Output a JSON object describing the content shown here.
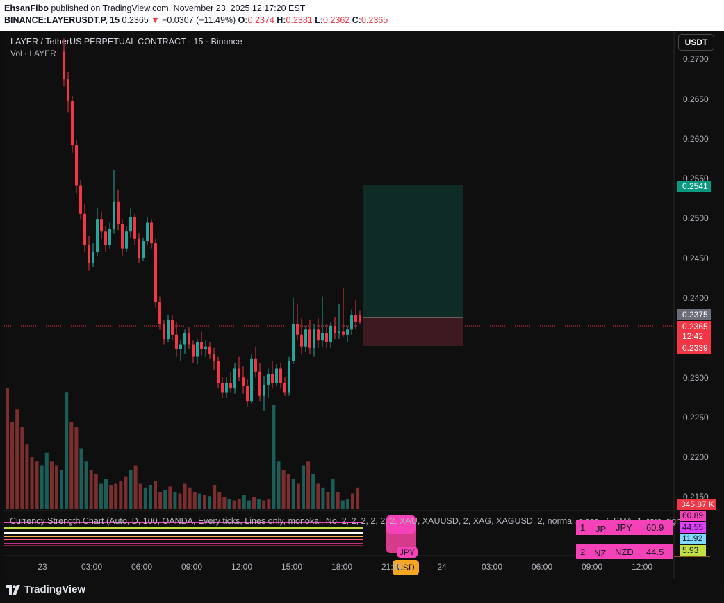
{
  "header": {
    "author": "EhsanFibo",
    "published_text": "published on TradingView.com, November 23, 2025 12:17:20 EST",
    "symbol": "BINANCE:LAYERUSDT.P, 15",
    "last": "0.2365",
    "change_arrow": "▼",
    "change": "−0.0307 (−11.49%)",
    "o_label": "O:",
    "o": "0.2374",
    "h_label": "H:",
    "h": "0.2381",
    "l_label": "L:",
    "l": "0.2362",
    "c_label": "C:",
    "c": "0.2365"
  },
  "legend": {
    "title": "LAYER / TetherUS PERPETUAL CONTRACT · 15 · Binance",
    "volume": "Vol · LAYER"
  },
  "currency_button": "USDT",
  "price_axis": {
    "ticks": [
      "0.2700",
      "0.2650",
      "0.2600",
      "0.2550",
      "0.2500",
      "0.2450",
      "0.2400",
      "0.2300",
      "0.2250",
      "0.2200",
      "0.2150"
    ],
    "labels": {
      "target": "0.2541",
      "entry": "0.2375",
      "last": "0.2365",
      "countdown": "12:42",
      "stop": "0.2339",
      "volume": "345.87 K"
    }
  },
  "time_axis": [
    "23",
    "03:00",
    "06:00",
    "09:00",
    "12:00",
    "15:00",
    "18:00",
    "21:00",
    "24",
    "03:00",
    "06:00",
    "09:00",
    "12:00"
  ],
  "indicator": {
    "text": "Currency Strength Chart (Auto, D, 100, OANDA, Every ticks, Lines only, monokai, No, 2, 2, 2, 2, 2, 2, XAU, XAUUSD, 2, XAG, XAGUSD, 2, normal, close, 7, SMA, 1, true, right",
    "jpy_label": "JPY",
    "usd_label": "USD",
    "table": [
      {
        "rank": "1",
        "flag": "JP",
        "currency": "JPY",
        "value": "60.9"
      },
      {
        "rank": "2",
        "flag": "NZ",
        "currency": "NZD",
        "value": "44.5"
      }
    ],
    "side_labels": [
      "60.89",
      "44.55",
      "11.92",
      "5.93"
    ]
  },
  "colors": {
    "up": "#26a69a",
    "down": "#f23645",
    "up_vol": "#1b5e58",
    "down_vol": "#7a2e2e",
    "target_zone": "#0f2b26",
    "stop_zone": "#3d1a1f"
  },
  "footer": {
    "logo_text": "TradingView"
  },
  "chart_data": {
    "type": "candlestick",
    "title": "LAYER / TetherUS PERPETUAL CONTRACT · 15 · Binance",
    "ylim": [
      0.213,
      0.2722
    ],
    "candles": [
      [
        0.2732,
        0.275,
        0.2685,
        0.2695
      ],
      [
        0.2695,
        0.2705,
        0.265,
        0.2665
      ],
      [
        0.2665,
        0.2672,
        0.2595,
        0.2605
      ],
      [
        0.2605,
        0.2612,
        0.254,
        0.255
      ],
      [
        0.255,
        0.2558,
        0.2505,
        0.2512
      ],
      [
        0.2512,
        0.2525,
        0.246,
        0.247
      ],
      [
        0.247,
        0.2482,
        0.2435,
        0.2445
      ],
      [
        0.2445,
        0.2472,
        0.244,
        0.246
      ],
      [
        0.246,
        0.252,
        0.2455,
        0.2505
      ],
      [
        0.2505,
        0.2515,
        0.2478,
        0.2488
      ],
      [
        0.2488,
        0.2495,
        0.246,
        0.247
      ],
      [
        0.247,
        0.25,
        0.2465,
        0.2492
      ],
      [
        0.2492,
        0.2572,
        0.2485,
        0.2528
      ],
      [
        0.2528,
        0.2545,
        0.249,
        0.2498
      ],
      [
        0.2498,
        0.2505,
        0.2455,
        0.2465
      ],
      [
        0.2465,
        0.2495,
        0.246,
        0.2488
      ],
      [
        0.2488,
        0.252,
        0.248,
        0.2508
      ],
      [
        0.2508,
        0.2512,
        0.247,
        0.2478
      ],
      [
        0.2478,
        0.2485,
        0.2445,
        0.2452
      ],
      [
        0.2452,
        0.248,
        0.2448,
        0.2475
      ],
      [
        0.2475,
        0.2508,
        0.247,
        0.25
      ],
      [
        0.25,
        0.2505,
        0.2465,
        0.2472
      ],
      [
        0.2472,
        0.2478,
        0.2385,
        0.2392
      ],
      [
        0.2392,
        0.24,
        0.2355,
        0.2362
      ],
      [
        0.2362,
        0.2368,
        0.2335,
        0.2342
      ],
      [
        0.2342,
        0.2375,
        0.2338,
        0.2368
      ],
      [
        0.2368,
        0.2375,
        0.234,
        0.2348
      ],
      [
        0.2348,
        0.2365,
        0.2318,
        0.2328
      ],
      [
        0.2328,
        0.234,
        0.2312,
        0.2335
      ],
      [
        0.2335,
        0.2355,
        0.2322,
        0.235
      ],
      [
        0.235,
        0.2358,
        0.2328,
        0.2335
      ],
      [
        0.2335,
        0.234,
        0.231,
        0.2318
      ],
      [
        0.2318,
        0.2342,
        0.2308,
        0.2338
      ],
      [
        0.2338,
        0.2352,
        0.232,
        0.2328
      ],
      [
        0.2328,
        0.234,
        0.2318,
        0.2332
      ],
      [
        0.2332,
        0.2338,
        0.2315,
        0.2322
      ],
      [
        0.2322,
        0.233,
        0.23,
        0.2312
      ],
      [
        0.2312,
        0.2318,
        0.2275,
        0.2282
      ],
      [
        0.2282,
        0.229,
        0.2262,
        0.227
      ],
      [
        0.227,
        0.229,
        0.2262,
        0.2282
      ],
      [
        0.2282,
        0.2298,
        0.227,
        0.2275
      ],
      [
        0.2275,
        0.231,
        0.2268,
        0.2302
      ],
      [
        0.2302,
        0.2318,
        0.2285,
        0.229
      ],
      [
        0.229,
        0.2305,
        0.2268,
        0.2278
      ],
      [
        0.2278,
        0.2288,
        0.225,
        0.2258
      ],
      [
        0.2258,
        0.2322,
        0.2255,
        0.2315
      ],
      [
        0.2315,
        0.2332,
        0.229,
        0.2298
      ],
      [
        0.2298,
        0.231,
        0.2258,
        0.2265
      ],
      [
        0.2265,
        0.2292,
        0.2245,
        0.228
      ],
      [
        0.228,
        0.2302,
        0.2262,
        0.2295
      ],
      [
        0.2295,
        0.2312,
        0.2275,
        0.2282
      ],
      [
        0.2282,
        0.2308,
        0.2278,
        0.2302
      ],
      [
        0.2302,
        0.231,
        0.2275,
        0.2282
      ],
      [
        0.2282,
        0.229,
        0.2265,
        0.227
      ],
      [
        0.227,
        0.2318,
        0.2265,
        0.2312
      ],
      [
        0.2312,
        0.2398,
        0.2308,
        0.2362
      ],
      [
        0.2362,
        0.239,
        0.234,
        0.2348
      ],
      [
        0.2348,
        0.237,
        0.2322,
        0.2332
      ],
      [
        0.2332,
        0.236,
        0.2325,
        0.2355
      ],
      [
        0.2355,
        0.2368,
        0.2322,
        0.233
      ],
      [
        0.233,
        0.2362,
        0.2318,
        0.2355
      ],
      [
        0.2355,
        0.237,
        0.233,
        0.234
      ],
      [
        0.234,
        0.24,
        0.2332,
        0.235
      ],
      [
        0.235,
        0.2362,
        0.233,
        0.2338
      ],
      [
        0.2338,
        0.2365,
        0.233,
        0.236
      ],
      [
        0.236,
        0.2372,
        0.2342,
        0.235
      ],
      [
        0.235,
        0.239,
        0.2342,
        0.2352
      ],
      [
        0.2352,
        0.2412,
        0.2345,
        0.2348
      ],
      [
        0.2348,
        0.236,
        0.2338,
        0.2355
      ],
      [
        0.2355,
        0.2382,
        0.2348,
        0.2375
      ],
      [
        0.2375,
        0.2395,
        0.2355,
        0.2365
      ],
      [
        0.2374,
        0.2381,
        0.2362,
        0.2365
      ]
    ],
    "volumes": [
      1.4,
      1.0,
      1.15,
      0.95,
      0.75,
      0.6,
      0.55,
      0.5,
      0.65,
      0.55,
      0.5,
      0.45,
      1.35,
      1.0,
      0.95,
      0.7,
      0.55,
      0.45,
      0.4,
      0.3,
      0.35,
      0.28,
      0.3,
      0.32,
      0.38,
      0.45,
      0.5,
      0.3,
      0.25,
      0.28,
      0.32,
      0.2,
      0.22,
      0.26,
      0.2,
      0.18,
      0.3,
      0.25,
      0.2,
      0.18,
      0.16,
      0.15,
      0.28,
      0.2,
      0.14,
      0.12,
      0.1,
      0.12,
      0.16,
      0.1,
      0.14,
      0.12,
      0.1,
      0.12,
      1.2,
      0.55,
      0.45,
      0.4,
      0.35,
      0.3,
      0.5,
      0.55,
      0.4,
      0.3,
      0.25,
      0.2,
      0.35,
      0.2,
      0.1,
      0.12,
      0.18,
      0.25
    ]
  }
}
